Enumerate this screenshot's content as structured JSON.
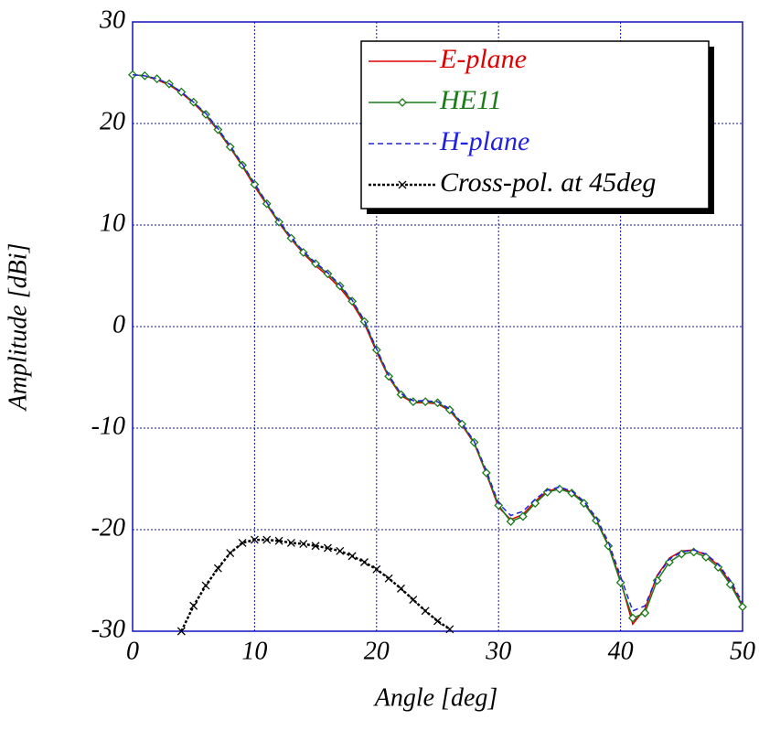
{
  "chart_data": {
    "type": "line",
    "xlabel": "Angle [deg]",
    "ylabel": "Amplitude [dBi]",
    "xlim": [
      0,
      50
    ],
    "ylim": [
      -30,
      30
    ],
    "xticks": [
      0,
      10,
      20,
      30,
      40,
      50
    ],
    "yticks": [
      -30,
      -20,
      -10,
      0,
      10,
      20,
      30
    ],
    "grid": true,
    "legend": "upper right",
    "x": [
      0,
      1,
      2,
      3,
      4,
      5,
      6,
      7,
      8,
      9,
      10,
      11,
      12,
      13,
      14,
      15,
      16,
      17,
      18,
      19,
      20,
      21,
      22,
      23,
      24,
      25,
      26,
      27,
      28,
      29,
      30,
      31,
      32,
      33,
      34,
      35,
      36,
      37,
      38,
      39,
      40,
      41,
      42,
      43,
      44,
      45,
      46,
      47,
      48,
      49,
      50
    ],
    "series": [
      {
        "name": "E-plane",
        "color": "#dd0000",
        "marker": "none",
        "dash": "solid",
        "values": [
          24.8,
          24.7,
          24.3,
          23.8,
          23.0,
          22.0,
          20.8,
          19.3,
          17.6,
          15.8,
          13.8,
          12.0,
          10.2,
          8.6,
          7.2,
          6.0,
          5.0,
          3.8,
          2.3,
          0.3,
          -2.5,
          -5.0,
          -6.8,
          -7.5,
          -7.5,
          -7.6,
          -8.3,
          -9.7,
          -11.5,
          -14.5,
          -17.8,
          -19.0,
          -18.5,
          -17.2,
          -16.2,
          -15.9,
          -16.3,
          -17.3,
          -19.0,
          -21.5,
          -25.0,
          -29.3,
          -27.8,
          -24.5,
          -22.8,
          -22.1,
          -22.0,
          -22.5,
          -23.5,
          -25.2,
          -27.5
        ]
      },
      {
        "name": "HE11",
        "color": "#1a7a1a",
        "marker": "diamond",
        "dash": "solid",
        "values": [
          24.8,
          24.7,
          24.4,
          23.9,
          23.1,
          22.1,
          20.9,
          19.4,
          17.7,
          15.9,
          14.0,
          12.1,
          10.3,
          8.7,
          7.3,
          6.2,
          5.2,
          4.0,
          2.5,
          0.5,
          -2.3,
          -4.9,
          -6.7,
          -7.4,
          -7.4,
          -7.5,
          -8.2,
          -9.6,
          -11.4,
          -14.4,
          -17.6,
          -19.2,
          -18.7,
          -17.4,
          -16.3,
          -16.0,
          -16.4,
          -17.4,
          -19.1,
          -21.6,
          -25.2,
          -28.7,
          -28.2,
          -25.0,
          -23.2,
          -22.4,
          -22.2,
          -22.7,
          -23.7,
          -25.4,
          -27.6
        ]
      },
      {
        "name": "H-plane",
        "color": "#2222dd",
        "marker": "none",
        "dash": "dashed",
        "values": [
          24.8,
          24.7,
          24.4,
          23.9,
          23.1,
          22.1,
          21.0,
          19.5,
          17.8,
          16.0,
          14.1,
          12.2,
          10.4,
          8.8,
          7.4,
          6.3,
          5.3,
          4.1,
          2.6,
          0.6,
          -2.2,
          -4.8,
          -6.6,
          -7.3,
          -7.3,
          -7.4,
          -8.1,
          -9.5,
          -11.3,
          -14.2,
          -17.4,
          -18.6,
          -18.2,
          -17.0,
          -16.1,
          -15.8,
          -16.2,
          -17.2,
          -18.8,
          -21.2,
          -24.6,
          -28.0,
          -27.5,
          -24.6,
          -22.9,
          -22.2,
          -22.0,
          -22.4,
          -23.4,
          -25.0,
          -27.2
        ]
      },
      {
        "name": "Cross-pol. at 45deg",
        "color": "#000000",
        "marker": "x",
        "dash": "dotted",
        "values": [
          null,
          null,
          null,
          null,
          -30.0,
          -27.5,
          -25.5,
          -23.8,
          -22.3,
          -21.3,
          -21.0,
          -21.0,
          -21.1,
          -21.3,
          -21.4,
          -21.6,
          -21.8,
          -22.1,
          -22.6,
          -23.2,
          -23.9,
          -24.8,
          -25.8,
          -26.9,
          -28.0,
          -29.0,
          -29.8,
          null,
          null,
          null,
          null,
          null,
          null,
          null,
          null,
          null,
          null,
          null,
          null,
          null,
          null,
          null,
          null,
          null,
          null,
          null,
          null,
          null,
          null,
          null,
          null
        ]
      }
    ]
  }
}
